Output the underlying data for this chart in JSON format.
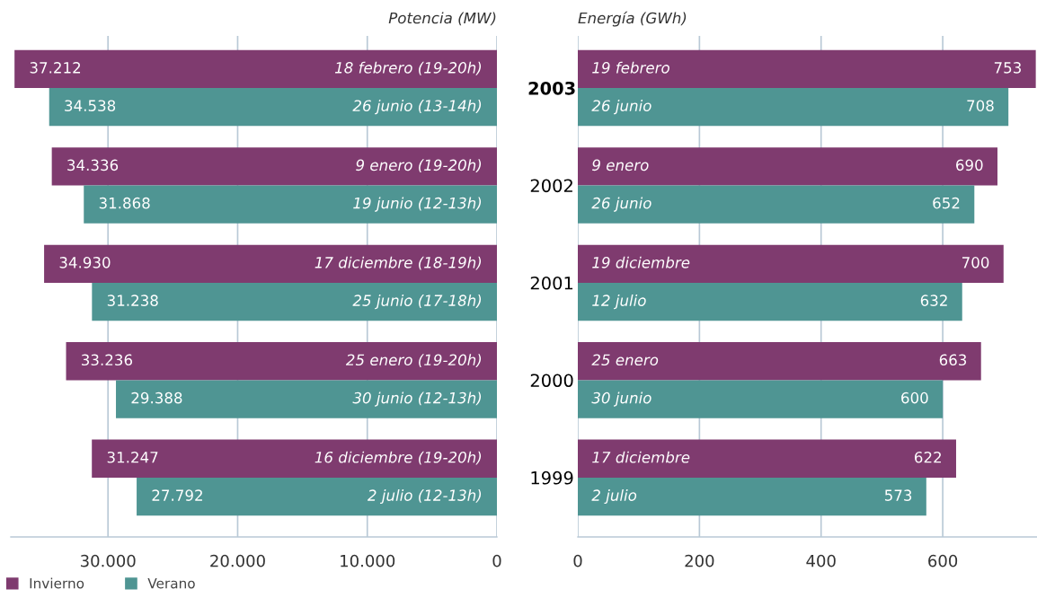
{
  "chart_data": [
    {
      "type": "bar",
      "orientation": "horizontal",
      "title": "Potencia (MW)",
      "categories": [
        "2003",
        "2002",
        "2001",
        "2000",
        "1999"
      ],
      "series": [
        {
          "name": "Invierno",
          "color": "#7f3b6f",
          "values": [
            37212,
            34336,
            34930,
            33236,
            31247
          ],
          "value_labels": [
            "37.212",
            "34.336",
            "34.930",
            "33.236",
            "31.247"
          ]
        },
        {
          "name": "Verano",
          "color": "#4f9593",
          "values": [
            34538,
            31868,
            31238,
            29388,
            27792
          ],
          "value_labels": [
            "34.538",
            "31.868",
            "31.238",
            "29.388",
            "27.792"
          ]
        }
      ],
      "annotations": [
        "18 febrero (19-20h)",
        "26 junio (13-14h)",
        "9 enero (19-20h)",
        "19 junio (12-13h)",
        "17 diciembre (18-19h)",
        "25 junio (17-18h)",
        "25 enero (19-20h)",
        "30 junio (12-13h)",
        "16 diciembre (19-20h)",
        "2 julio (12-13h)"
      ],
      "xlim": [
        37500,
        0
      ],
      "xticks": [
        {
          "value": 30000,
          "label": "30.000"
        },
        {
          "value": 20000,
          "label": "20.000"
        },
        {
          "value": 10000,
          "label": "10.000"
        },
        0
      ],
      "grid": "x",
      "legend": "bottom left"
    },
    {
      "type": "bar",
      "orientation": "horizontal",
      "title": "Energía (GWh)",
      "categories": [
        "2003",
        "2002",
        "2001",
        "2000",
        "1999"
      ],
      "tick_labels": "x",
      "series": [
        {
          "color": "#7f3b6f",
          "values": [
            753,
            690,
            700,
            663,
            622
          ]
        },
        {
          "color": "#4f9593",
          "values": [
            708,
            652,
            632,
            600,
            573
          ]
        }
      ],
      "data_labels": true,
      "annotations": [
        "19 febrero",
        "26 junio",
        "9 enero",
        "26 junio",
        "19 diciembre",
        "12 julio",
        "25 enero",
        "30 junio",
        "17 diciembre",
        "2 julio"
      ],
      "xlim": [
        0,
        755
      ],
      "xticks": [
        0,
        200,
        400,
        600
      ],
      "grid": "x"
    }
  ]
}
